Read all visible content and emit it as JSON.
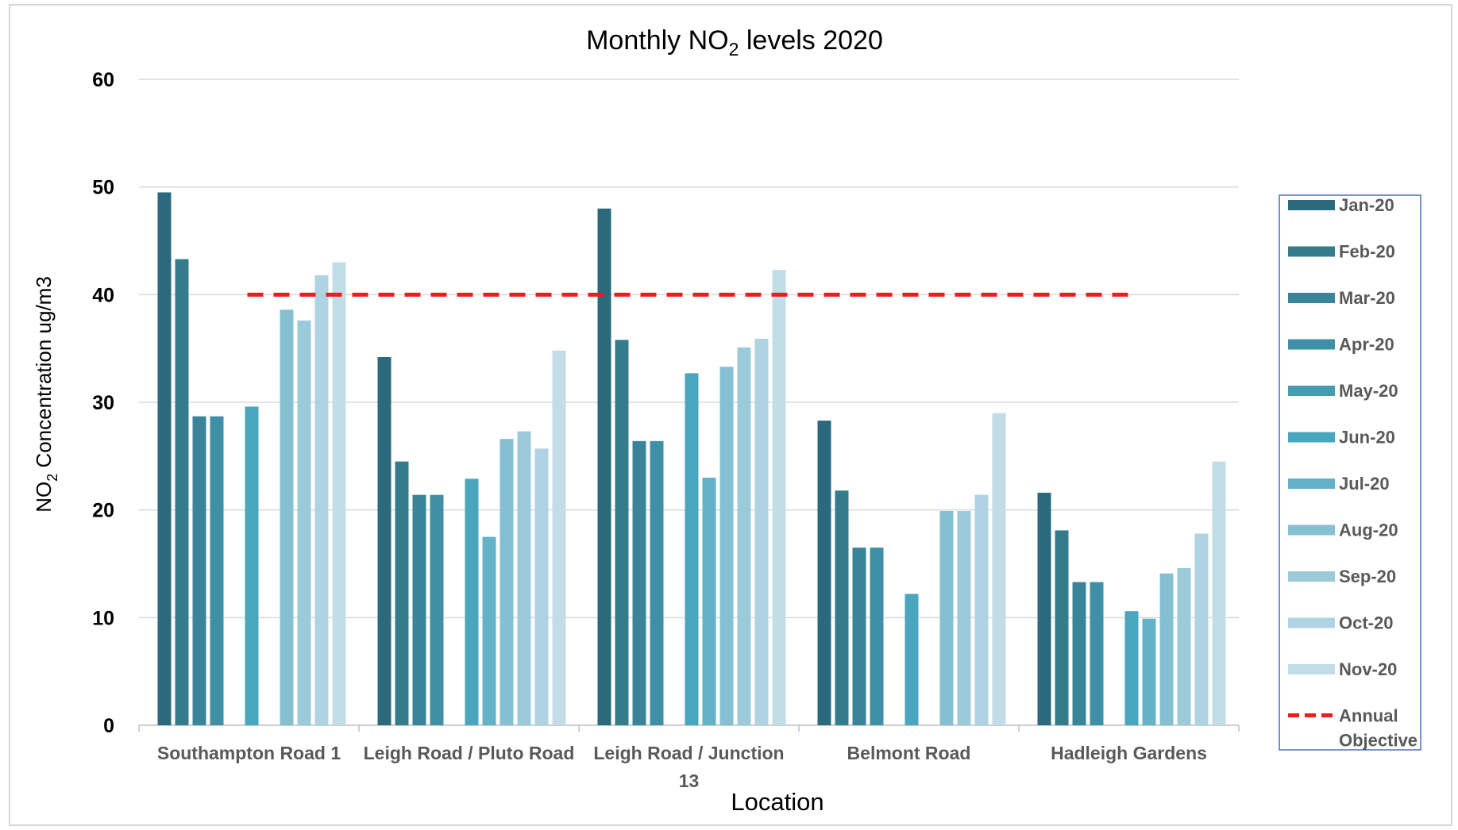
{
  "chart_data": {
    "type": "bar",
    "title_main": "Monthly NO",
    "title_sub": "2",
    "title_rest": " levels 2020",
    "xlabel": "Location",
    "ylabel_main": "NO",
    "ylabel_sub": "2",
    "ylabel_rest": " Concentration ug/m3",
    "ylim": [
      0,
      60
    ],
    "yticks": [
      "0",
      "10",
      "20",
      "30",
      "40",
      "50",
      "60"
    ],
    "grid": true,
    "legend_position": "right",
    "categories": [
      [
        "Southampton Road 1"
      ],
      [
        "Leigh Road / Pluto Road"
      ],
      [
        "Leigh Road / Junction",
        "13"
      ],
      [
        "Belmont Road"
      ],
      [
        "Hadleigh Gardens"
      ]
    ],
    "series": [
      {
        "name": "Jan-20",
        "color": "#2b6a7c",
        "values": [
          49.5,
          34.2,
          48.0,
          28.3,
          21.6
        ]
      },
      {
        "name": "Feb-20",
        "color": "#347c8c",
        "values": [
          43.3,
          24.5,
          35.8,
          21.8,
          18.1
        ]
      },
      {
        "name": "Mar-20",
        "color": "#3a8499",
        "values": [
          28.7,
          21.4,
          26.4,
          16.5,
          13.3
        ]
      },
      {
        "name": "Apr-20",
        "color": "#3f90a6",
        "values": [
          28.7,
          21.4,
          26.4,
          16.5,
          13.3
        ]
      },
      {
        "name": "May-20",
        "color": "#459db3",
        "values": [
          null,
          null,
          null,
          null,
          null
        ]
      },
      {
        "name": "Jun-20",
        "color": "#4aa5be",
        "values": [
          29.6,
          22.9,
          32.7,
          12.2,
          10.6
        ]
      },
      {
        "name": "Jul-20",
        "color": "#63b2c7",
        "values": [
          null,
          17.5,
          23.0,
          null,
          9.9
        ]
      },
      {
        "name": "Aug-20",
        "color": "#85bfd2",
        "values": [
          38.6,
          26.6,
          33.3,
          19.9,
          14.1
        ]
      },
      {
        "name": "Sep-20",
        "color": "#9bcadb",
        "values": [
          37.6,
          27.3,
          35.1,
          19.9,
          14.6
        ]
      },
      {
        "name": "Oct-20",
        "color": "#aed3e2",
        "values": [
          41.8,
          25.7,
          35.9,
          21.4,
          17.8
        ]
      },
      {
        "name": "Nov-20",
        "color": "#c2dde8",
        "values": [
          43.0,
          34.8,
          42.3,
          29.0,
          24.5
        ]
      }
    ],
    "reference_line": {
      "name_lines": [
        "Annual",
        "Objective"
      ],
      "value": 40,
      "color": "#ee1c1c"
    }
  }
}
